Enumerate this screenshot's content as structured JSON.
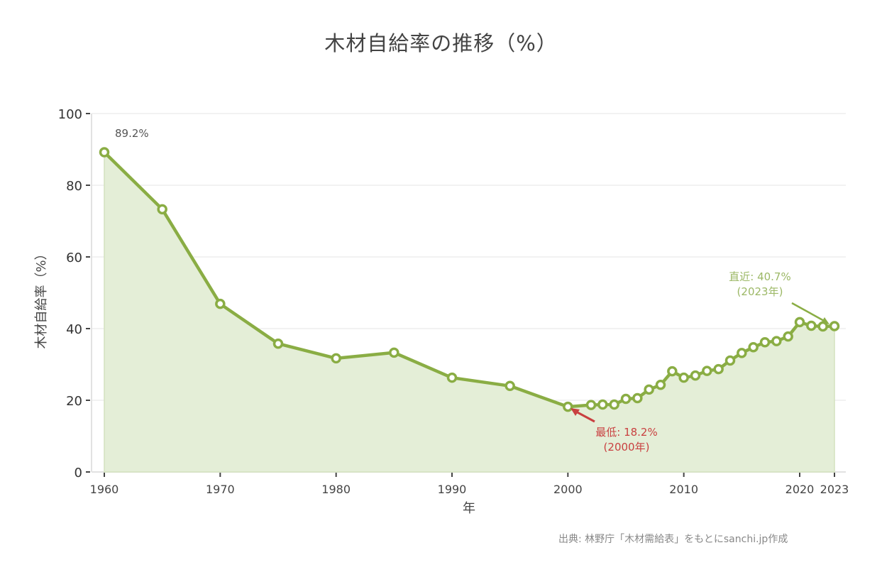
{
  "title": "木材自給率の推移（%）",
  "source_note": "出典: 林野庁「木材需給表」をもとにsanchi.jp作成",
  "colors": {
    "line": "#8aad44",
    "fill": "#e4eed7",
    "marker_fill": "#ffffff",
    "min_annotation": "#c94040",
    "latest_annotation": "#9cb866",
    "grid": "#e6e6e6",
    "text": "#333333"
  },
  "chart_data": {
    "type": "area",
    "title": "木材自給率の推移（%）",
    "xlabel": "年",
    "ylabel": "木材自給率（%）",
    "xlim": [
      1960,
      2023
    ],
    "ylim": [
      0,
      100
    ],
    "yticks": [
      0,
      20,
      40,
      60,
      80,
      100
    ],
    "xticks": [
      1960,
      1970,
      1980,
      1990,
      2000,
      2010,
      2020,
      2023
    ],
    "grid": true,
    "legend": null,
    "x": [
      1960,
      1965,
      1970,
      1975,
      1980,
      1985,
      1990,
      1995,
      2000,
      2002,
      2003,
      2004,
      2005,
      2006,
      2007,
      2008,
      2009,
      2010,
      2011,
      2012,
      2013,
      2014,
      2015,
      2016,
      2017,
      2018,
      2019,
      2020,
      2021,
      2022,
      2023
    ],
    "series": [
      {
        "name": "木材自給率",
        "values": [
          89.2,
          73.3,
          46.9,
          35.8,
          31.7,
          33.3,
          26.3,
          24.0,
          18.2,
          18.7,
          18.8,
          18.8,
          20.4,
          20.6,
          23.0,
          24.3,
          28.1,
          26.3,
          26.9,
          28.2,
          28.7,
          31.1,
          33.2,
          34.8,
          36.2,
          36.5,
          37.8,
          41.8,
          40.8,
          40.6,
          40.7
        ]
      }
    ],
    "annotations": [
      {
        "text": "89.2%",
        "x": 1960,
        "y": 89.2
      },
      {
        "text": "最低: 18.2%",
        "subtext": "(2000年)",
        "x": 2000,
        "y": 18.2
      },
      {
        "text": "直近: 40.7%",
        "subtext": "(2023年)",
        "x": 2023,
        "y": 40.7
      }
    ]
  },
  "labels": {
    "first_point": "89.2%",
    "min_line1": "最低: 18.2%",
    "min_line2": "(2000年)",
    "latest_line1": "直近: 40.7%",
    "latest_line2": "(2023年)",
    "xlabel": "年",
    "ylabel": "木材自給率（%）"
  }
}
